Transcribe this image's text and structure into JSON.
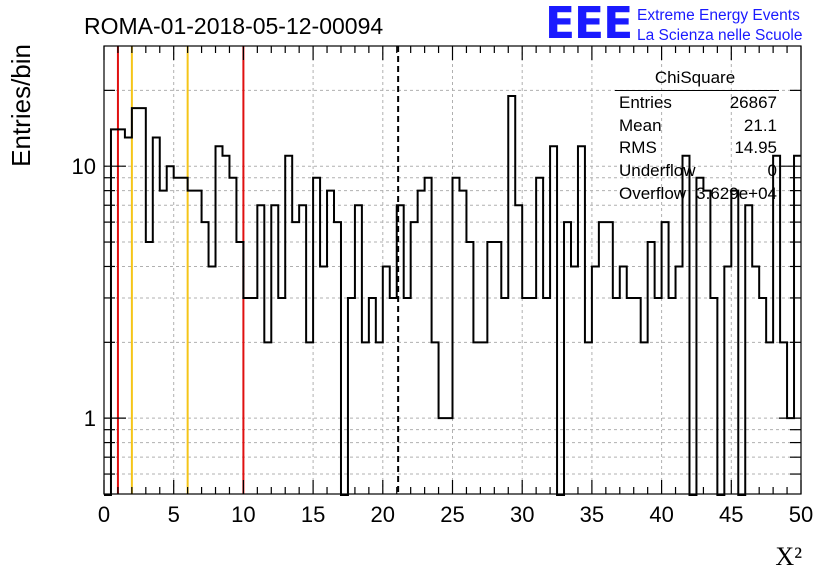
{
  "title": "ROMA-01-2018-05-12-00094",
  "logo": {
    "mark": "EEE",
    "line1": "Extreme Energy Events",
    "line2": "La Scienza nelle Scuole"
  },
  "stats": {
    "title": "ChiSquare",
    "rows": [
      {
        "label": "Entries",
        "value": "26867"
      },
      {
        "label": "Mean",
        "value": "21.1"
      },
      {
        "label": "RMS",
        "value": "14.95"
      },
      {
        "label": "Underflow",
        "value": "0"
      },
      {
        "label": "Overflow",
        "value": "3.629e+04"
      }
    ]
  },
  "chart_data": {
    "type": "bar",
    "style": "step-histogram",
    "title": "ROMA-01-2018-05-12-00094",
    "xlabel": "X²",
    "ylabel": "Entries/bin",
    "xlim": [
      0,
      50
    ],
    "ylim": [
      0.5,
      30
    ],
    "yscale": "log",
    "grid": true,
    "bin_width": 0.5,
    "x_ticks": [
      "0",
      "5",
      "10",
      "15",
      "20",
      "25",
      "30",
      "35",
      "40",
      "45",
      "50"
    ],
    "y_ticks": [
      {
        "value": 1,
        "label": "1"
      },
      {
        "value": 10,
        "label": "10"
      }
    ],
    "values": [
      0,
      14,
      14,
      13,
      17,
      17,
      5,
      13,
      8,
      10,
      9,
      9,
      8,
      8,
      6,
      4,
      12,
      11,
      9,
      5,
      3,
      3,
      7,
      2,
      7,
      3,
      11,
      6,
      7,
      2,
      9,
      4,
      8,
      6,
      0,
      3,
      7,
      2,
      3,
      2,
      4,
      3,
      7,
      3,
      6,
      8,
      9,
      2,
      1,
      1,
      9,
      8,
      5,
      2,
      2,
      5,
      5,
      3,
      19,
      7,
      3,
      3,
      9,
      3,
      12,
      0,
      6,
      4,
      12,
      2,
      4,
      6,
      6,
      3,
      4,
      3,
      3,
      2,
      5,
      3,
      6,
      3,
      4,
      11,
      0,
      9,
      8,
      3,
      0,
      4,
      8,
      0,
      7,
      4,
      3,
      2,
      11,
      2,
      1,
      11
    ],
    "vertical_lines": [
      {
        "x": 1,
        "color": "#e01010",
        "style": "solid"
      },
      {
        "x": 2,
        "color": "#f5c518",
        "style": "solid"
      },
      {
        "x": 6,
        "color": "#f5c518",
        "style": "solid"
      },
      {
        "x": 10,
        "color": "#e01010",
        "style": "solid"
      },
      {
        "x": 21.1,
        "color": "#000000",
        "style": "dashed"
      }
    ]
  }
}
